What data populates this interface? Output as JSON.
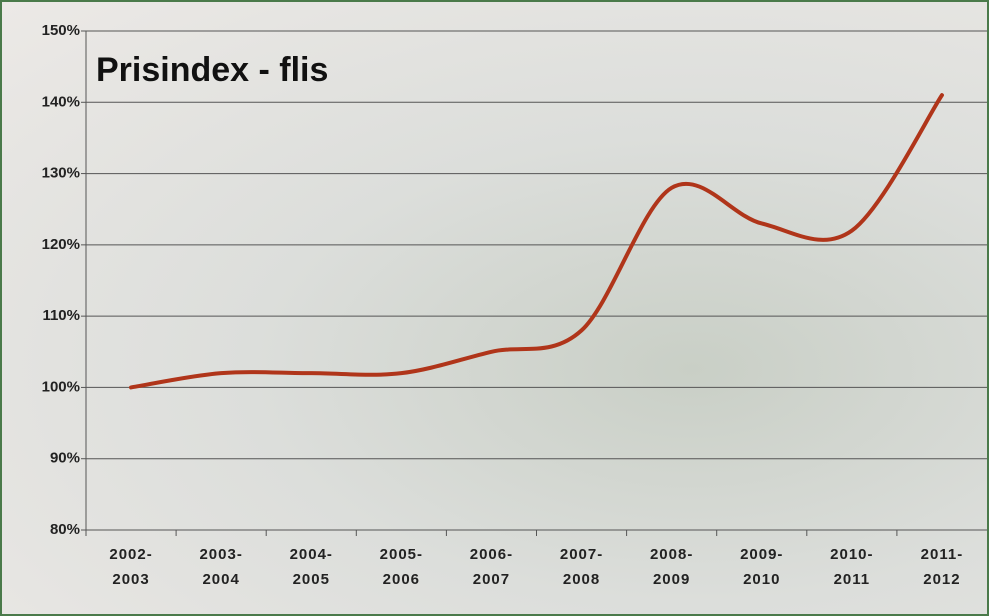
{
  "chart_data": {
    "type": "line",
    "title": "Prisindex - flis",
    "categories": [
      "2002- 2003",
      "2003- 2004",
      "2004- 2005",
      "2005- 2006",
      "2006- 2007",
      "2007- 2008",
      "2008- 2009",
      "2009- 2010",
      "2010- 2011",
      "2011- 2012"
    ],
    "values": [
      100,
      102,
      102,
      102,
      105,
      108,
      128,
      123,
      122,
      141
    ],
    "color": "#b0351a",
    "ylim": [
      80,
      150
    ],
    "yticks": [
      {
        "value": 80,
        "label": "80%"
      },
      {
        "value": 90,
        "label": "90%"
      },
      {
        "value": 100,
        "label": "100%"
      },
      {
        "value": 110,
        "label": "110%"
      },
      {
        "value": 120,
        "label": "120%"
      },
      {
        "value": 130,
        "label": "130%"
      },
      {
        "value": 140,
        "label": "140%"
      },
      {
        "value": 150,
        "label": "150%"
      }
    ],
    "grid": true
  }
}
